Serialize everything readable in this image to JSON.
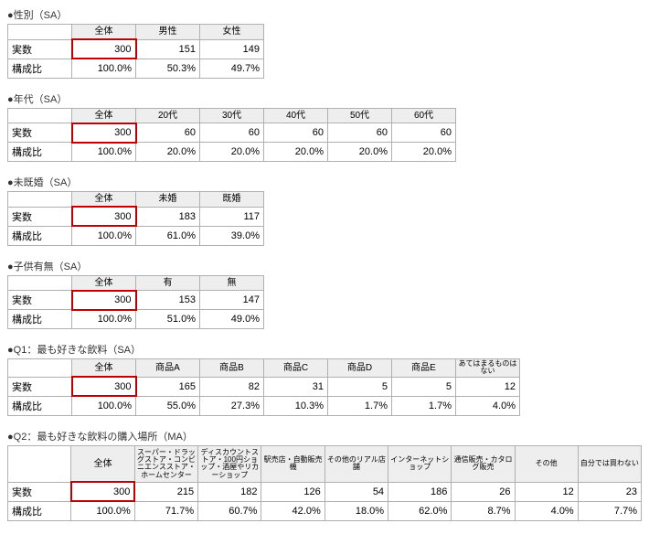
{
  "labels": {
    "count": "実数",
    "ratio": "構成比",
    "total": "全体"
  },
  "sections": [
    {
      "title": "●性別（SA）",
      "headers": [
        "男性",
        "女性"
      ],
      "total": 300,
      "counts": [
        151,
        149
      ],
      "ratios": [
        "100.0%",
        "50.3%",
        "49.7%"
      ]
    },
    {
      "title": "●年代（SA）",
      "headers": [
        "20代",
        "30代",
        "40代",
        "50代",
        "60代"
      ],
      "total": 300,
      "counts": [
        60,
        60,
        60,
        60,
        60
      ],
      "ratios": [
        "100.0%",
        "20.0%",
        "20.0%",
        "20.0%",
        "20.0%",
        "20.0%"
      ]
    },
    {
      "title": "●未既婚（SA）",
      "headers": [
        "未婚",
        "既婚"
      ],
      "total": 300,
      "counts": [
        183,
        117
      ],
      "ratios": [
        "100.0%",
        "61.0%",
        "39.0%"
      ]
    },
    {
      "title": "●子供有無（SA）",
      "headers": [
        "有",
        "無"
      ],
      "total": 300,
      "counts": [
        153,
        147
      ],
      "ratios": [
        "100.0%",
        "51.0%",
        "49.0%"
      ]
    },
    {
      "title": "●Q1：最も好きな飲料（SA）",
      "headers": [
        "商品A",
        "商品B",
        "商品C",
        "商品D",
        "商品E",
        "あてはまるものはない"
      ],
      "wrapLast": true,
      "total": 300,
      "counts": [
        165,
        82,
        31,
        5,
        5,
        12
      ],
      "ratios": [
        "100.0%",
        "55.0%",
        "27.3%",
        "10.3%",
        "1.7%",
        "1.7%",
        "4.0%"
      ]
    },
    {
      "title": "●Q2：最も好きな飲料の購入場所（MA）",
      "headers": [
        "スーパー・ドラッグストア・コンビニエンスストア・ホームセンター",
        "ディスカウントストア・100円ショップ・酒屋やリカーショップ",
        "駅売店・自動販売機",
        "その他のリアル店舗",
        "インターネットショップ",
        "通信販売・カタログ販売",
        "その他",
        "自分では買わない"
      ],
      "tall": true,
      "wrapAll": true,
      "total": 300,
      "counts": [
        215,
        182,
        126,
        54,
        186,
        26,
        12,
        23
      ],
      "ratios": [
        "100.0%",
        "71.7%",
        "60.7%",
        "42.0%",
        "18.0%",
        "62.0%",
        "8.7%",
        "4.0%",
        "7.7%"
      ]
    }
  ]
}
